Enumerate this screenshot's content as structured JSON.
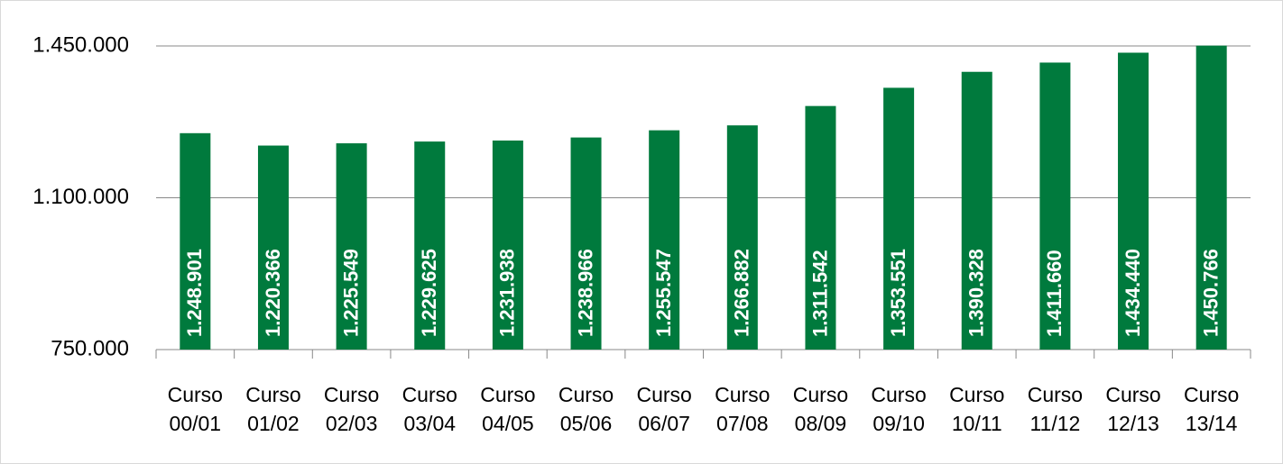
{
  "chart_data": {
    "type": "bar",
    "categories": [
      "Curso 00/01",
      "Curso 01/02",
      "Curso 02/03",
      "Curso 03/04",
      "Curso 04/05",
      "Curso 05/06",
      "Curso 06/07",
      "Curso 07/08",
      "Curso 08/09",
      "Curso 09/10",
      "Curso 10/11",
      "Curso 11/12",
      "Curso 12/13",
      "Curso 13/14"
    ],
    "values": [
      1248901,
      1220366,
      1225549,
      1229625,
      1231938,
      1238966,
      1255547,
      1266882,
      1311542,
      1353551,
      1390328,
      1411660,
      1434440,
      1450766
    ],
    "value_labels": [
      "1.248.901",
      "1.220.366",
      "1.225.549",
      "1.229.625",
      "1.231.938",
      "1.238.966",
      "1.255.547",
      "1.266.882",
      "1.311.542",
      "1.353.551",
      "1.390.328",
      "1.411.660",
      "1.434.440",
      "1.450.766"
    ],
    "color": "#007a3d",
    "ylim": [
      750000,
      1450000
    ],
    "yticks": [
      {
        "value": 750000,
        "label": "750.000"
      },
      {
        "value": 1100000,
        "label": "1.100.000"
      },
      {
        "value": 1450000,
        "label": "1.450.000"
      }
    ],
    "grid": true
  }
}
